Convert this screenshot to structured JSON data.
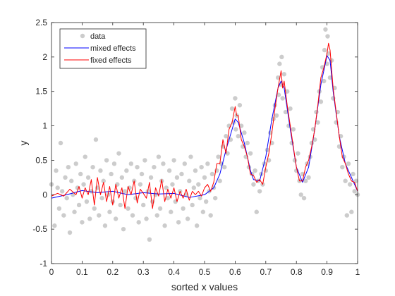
{
  "chart_data": {
    "type": "scatter",
    "title": "",
    "xlabel": "sorted x values",
    "ylabel": "y",
    "xlim": [
      0,
      1
    ],
    "ylim": [
      -1,
      2.5
    ],
    "xticks": [
      0,
      0.1,
      0.2,
      0.3,
      0.4,
      0.5,
      0.6,
      0.7,
      0.8,
      0.9,
      1
    ],
    "xtick_labels": [
      "0",
      "0.1",
      "0.2",
      "0.3",
      "0.4",
      "0.5",
      "0.6",
      "0.7",
      "0.8",
      "0.9",
      "1"
    ],
    "yticks": [
      -1,
      -0.5,
      0,
      0.5,
      1,
      1.5,
      2,
      2.5
    ],
    "ytick_labels": [
      "-1",
      "-0.5",
      "0",
      "0.5",
      "1",
      "1.5",
      "2",
      "2.5"
    ],
    "grid": false,
    "legend_position": "top-left",
    "series": [
      {
        "name": "data",
        "kind": "scatter",
        "color": "#cccccc",
        "points": [
          [
            0.0,
            0.15
          ],
          [
            0.01,
            -0.45
          ],
          [
            0.015,
            0.35
          ],
          [
            0.02,
            0.1
          ],
          [
            0.025,
            -0.2
          ],
          [
            0.03,
            0.75
          ],
          [
            0.035,
            0.05
          ],
          [
            0.04,
            -0.3
          ],
          [
            0.045,
            0.25
          ],
          [
            0.05,
            -0.05
          ],
          [
            0.055,
            0.4
          ],
          [
            0.06,
            -0.55
          ],
          [
            0.065,
            0.2
          ],
          [
            0.07,
            0.0
          ],
          [
            0.075,
            -0.25
          ],
          [
            0.08,
            0.45
          ],
          [
            0.085,
            0.1
          ],
          [
            0.09,
            -0.15
          ],
          [
            0.095,
            0.3
          ],
          [
            0.1,
            -0.4
          ],
          [
            0.105,
            0.15
          ],
          [
            0.11,
            0.55
          ],
          [
            0.115,
            -0.1
          ],
          [
            0.12,
            0.25
          ],
          [
            0.125,
            -0.35
          ],
          [
            0.13,
            0.05
          ],
          [
            0.135,
            0.4
          ],
          [
            0.14,
            -0.2
          ],
          [
            0.145,
            0.8
          ],
          [
            0.15,
            0.1
          ],
          [
            0.155,
            -0.3
          ],
          [
            0.16,
            0.35
          ],
          [
            0.165,
            -0.05
          ],
          [
            0.17,
            0.2
          ],
          [
            0.175,
            -0.45
          ],
          [
            0.18,
            0.5
          ],
          [
            0.185,
            0.0
          ],
          [
            0.19,
            -0.25
          ],
          [
            0.195,
            0.3
          ],
          [
            0.2,
            -0.1
          ],
          [
            0.205,
            0.45
          ],
          [
            0.21,
            -0.35
          ],
          [
            0.215,
            0.15
          ],
          [
            0.22,
            0.6
          ],
          [
            0.225,
            -0.15
          ],
          [
            0.23,
            0.25
          ],
          [
            0.235,
            -0.5
          ],
          [
            0.24,
            0.05
          ],
          [
            0.245,
            0.35
          ],
          [
            0.25,
            -0.2
          ],
          [
            0.255,
            0.1
          ],
          [
            0.26,
            0.45
          ],
          [
            0.265,
            -0.3
          ],
          [
            0.27,
            0.2
          ],
          [
            0.275,
            -0.05
          ],
          [
            0.28,
            0.4
          ],
          [
            0.285,
            -0.4
          ],
          [
            0.29,
            0.15
          ],
          [
            0.295,
            0.3
          ],
          [
            0.3,
            -0.15
          ],
          [
            0.305,
            0.5
          ],
          [
            0.31,
            -0.35
          ],
          [
            0.315,
            0.05
          ],
          [
            0.32,
            -0.65
          ],
          [
            0.325,
            0.25
          ],
          [
            0.33,
            -0.1
          ],
          [
            0.335,
            0.4
          ],
          [
            0.34,
            0.0
          ],
          [
            0.345,
            -0.3
          ],
          [
            0.35,
            0.55
          ],
          [
            0.355,
            -0.2
          ],
          [
            0.36,
            0.2
          ],
          [
            0.365,
            0.45
          ],
          [
            0.37,
            -0.45
          ],
          [
            0.375,
            0.1
          ],
          [
            0.38,
            -0.05
          ],
          [
            0.385,
            0.35
          ],
          [
            0.39,
            -0.25
          ],
          [
            0.395,
            0.15
          ],
          [
            0.4,
            0.5
          ],
          [
            0.405,
            -0.1
          ],
          [
            0.41,
            0.25
          ],
          [
            0.415,
            -0.4
          ],
          [
            0.42,
            0.05
          ],
          [
            0.425,
            0.3
          ],
          [
            0.43,
            -0.2
          ],
          [
            0.435,
            0.45
          ],
          [
            0.44,
            0.0
          ],
          [
            0.445,
            -0.35
          ],
          [
            0.45,
            0.2
          ],
          [
            0.455,
            0.55
          ],
          [
            0.46,
            -0.15
          ],
          [
            0.465,
            0.1
          ],
          [
            0.47,
            0.35
          ],
          [
            0.475,
            -0.45
          ],
          [
            0.48,
            0.15
          ],
          [
            0.485,
            -0.05
          ],
          [
            0.49,
            0.4
          ],
          [
            0.495,
            -0.25
          ],
          [
            0.5,
            0.25
          ],
          [
            0.505,
            -0.1
          ],
          [
            0.51,
            0.45
          ],
          [
            0.515,
            0.05
          ],
          [
            0.52,
            -0.3
          ],
          [
            0.525,
            0.3
          ],
          [
            0.53,
            0.1
          ],
          [
            0.535,
            -0.05
          ],
          [
            0.54,
            0.35
          ],
          [
            0.545,
            0.55
          ],
          [
            0.55,
            0.2
          ],
          [
            0.555,
            0.45
          ],
          [
            0.56,
            0.7
          ],
          [
            0.565,
            0.4
          ],
          [
            0.57,
            0.85
          ],
          [
            0.575,
            0.6
          ],
          [
            0.58,
            1.0
          ],
          [
            0.585,
            0.8
          ],
          [
            0.59,
            1.25
          ],
          [
            0.595,
            1.05
          ],
          [
            0.6,
            1.4
          ],
          [
            0.602,
            0.95
          ],
          [
            0.605,
            1.15
          ],
          [
            0.61,
            0.85
          ],
          [
            0.615,
            1.3
          ],
          [
            0.62,
            1.0
          ],
          [
            0.625,
            0.7
          ],
          [
            0.63,
            0.9
          ],
          [
            0.635,
            0.55
          ],
          [
            0.64,
            0.75
          ],
          [
            0.645,
            0.4
          ],
          [
            0.65,
            0.6
          ],
          [
            0.655,
            0.3
          ],
          [
            0.66,
            0.15
          ],
          [
            0.665,
            0.35
          ],
          [
            0.67,
            -0.25
          ],
          [
            0.675,
            0.2
          ],
          [
            0.68,
            0.05
          ],
          [
            0.685,
            0.3
          ],
          [
            0.69,
            0.15
          ],
          [
            0.695,
            0.45
          ],
          [
            0.7,
            0.35
          ],
          [
            0.705,
            0.65
          ],
          [
            0.71,
            0.5
          ],
          [
            0.715,
            0.9
          ],
          [
            0.72,
            0.75
          ],
          [
            0.725,
            1.1
          ],
          [
            0.73,
            1.3
          ],
          [
            0.735,
            1.15
          ],
          [
            0.74,
            1.7
          ],
          [
            0.742,
            1.45
          ],
          [
            0.745,
            1.9
          ],
          [
            0.75,
            1.6
          ],
          [
            0.752,
            2.0
          ],
          [
            0.755,
            1.4
          ],
          [
            0.76,
            1.75
          ],
          [
            0.765,
            1.2
          ],
          [
            0.77,
            1.5
          ],
          [
            0.775,
            1.0
          ],
          [
            0.78,
            1.25
          ],
          [
            0.785,
            0.75
          ],
          [
            0.79,
            0.95
          ],
          [
            0.795,
            0.5
          ],
          [
            0.8,
            0.35
          ],
          [
            0.805,
            0.6
          ],
          [
            0.81,
            0.2
          ],
          [
            0.815,
            0.0
          ],
          [
            0.82,
            0.3
          ],
          [
            0.825,
            -0.05
          ],
          [
            0.83,
            0.2
          ],
          [
            0.835,
            0.45
          ],
          [
            0.84,
            0.25
          ],
          [
            0.845,
            0.55
          ],
          [
            0.85,
            0.75
          ],
          [
            0.855,
            0.95
          ],
          [
            0.86,
            0.8
          ],
          [
            0.865,
            1.2
          ],
          [
            0.87,
            1.05
          ],
          [
            0.875,
            1.5
          ],
          [
            0.88,
            1.35
          ],
          [
            0.885,
            1.85
          ],
          [
            0.89,
            1.65
          ],
          [
            0.892,
            2.1
          ],
          [
            0.895,
            2.4
          ],
          [
            0.9,
            1.9
          ],
          [
            0.902,
            2.3
          ],
          [
            0.905,
            2.05
          ],
          [
            0.91,
            1.7
          ],
          [
            0.915,
            1.95
          ],
          [
            0.92,
            1.4
          ],
          [
            0.925,
            1.55
          ],
          [
            0.93,
            1.05
          ],
          [
            0.935,
            1.2
          ],
          [
            0.94,
            0.7
          ],
          [
            0.945,
            0.85
          ],
          [
            0.95,
            0.4
          ],
          [
            0.955,
            0.55
          ],
          [
            0.96,
            0.2
          ],
          [
            0.965,
            -0.3
          ],
          [
            0.97,
            0.45
          ],
          [
            0.975,
            0.15
          ],
          [
            0.98,
            -0.25
          ],
          [
            0.985,
            0.3
          ],
          [
            0.99,
            0.05
          ],
          [
            0.995,
            0.2
          ],
          [
            1.0,
            0.0
          ]
        ]
      },
      {
        "name": "mixed effects",
        "kind": "line",
        "color": "#0000ff",
        "x": [
          0.0,
          0.05,
          0.1,
          0.15,
          0.2,
          0.25,
          0.3,
          0.35,
          0.4,
          0.45,
          0.5,
          0.53,
          0.55,
          0.57,
          0.59,
          0.6,
          0.61,
          0.63,
          0.65,
          0.66,
          0.68,
          0.7,
          0.72,
          0.74,
          0.75,
          0.76,
          0.78,
          0.8,
          0.82,
          0.84,
          0.86,
          0.88,
          0.9,
          0.91,
          0.92,
          0.94,
          0.96,
          0.98,
          1.0
        ],
        "y": [
          -0.05,
          0.0,
          0.06,
          0.03,
          0.05,
          0.0,
          0.03,
          0.01,
          0.02,
          -0.04,
          0.0,
          0.1,
          0.3,
          0.65,
          0.95,
          1.1,
          1.05,
          0.75,
          0.35,
          0.22,
          0.2,
          0.55,
          1.1,
          1.55,
          1.65,
          1.55,
          0.95,
          0.4,
          0.18,
          0.4,
          0.95,
          1.6,
          2.02,
          1.95,
          1.5,
          0.85,
          0.45,
          0.25,
          0.05
        ]
      },
      {
        "name": "fixed effects",
        "kind": "line",
        "color": "#ff0000",
        "x": [
          0.0,
          0.02,
          0.04,
          0.06,
          0.08,
          0.09,
          0.1,
          0.11,
          0.12,
          0.13,
          0.14,
          0.15,
          0.16,
          0.17,
          0.18,
          0.19,
          0.2,
          0.21,
          0.22,
          0.23,
          0.24,
          0.25,
          0.26,
          0.27,
          0.28,
          0.29,
          0.3,
          0.31,
          0.32,
          0.33,
          0.34,
          0.35,
          0.36,
          0.37,
          0.38,
          0.39,
          0.4,
          0.41,
          0.42,
          0.43,
          0.44,
          0.45,
          0.46,
          0.47,
          0.48,
          0.49,
          0.5,
          0.51,
          0.52,
          0.53,
          0.54,
          0.55,
          0.56,
          0.57,
          0.58,
          0.59,
          0.6,
          0.605,
          0.61,
          0.62,
          0.63,
          0.64,
          0.65,
          0.66,
          0.67,
          0.68,
          0.69,
          0.7,
          0.71,
          0.72,
          0.73,
          0.74,
          0.75,
          0.755,
          0.76,
          0.77,
          0.78,
          0.79,
          0.8,
          0.81,
          0.82,
          0.83,
          0.84,
          0.85,
          0.86,
          0.87,
          0.88,
          0.89,
          0.9,
          0.905,
          0.91,
          0.92,
          0.93,
          0.94,
          0.95,
          0.96,
          0.97,
          0.98,
          0.99,
          1.0
        ],
        "y": [
          -0.02,
          0.02,
          -0.02,
          0.08,
          0.0,
          0.12,
          -0.05,
          0.1,
          0.0,
          0.22,
          -0.15,
          0.25,
          0.0,
          0.18,
          -0.1,
          0.12,
          -0.15,
          0.15,
          -0.05,
          0.1,
          -0.2,
          0.12,
          0.0,
          0.2,
          -0.12,
          0.08,
          0.02,
          -0.05,
          0.18,
          -0.2,
          0.1,
          -0.02,
          0.22,
          -0.1,
          0.08,
          -0.05,
          0.1,
          -0.1,
          0.05,
          -0.05,
          0.08,
          -0.08,
          0.05,
          0.0,
          0.05,
          -0.02,
          0.1,
          0.15,
          0.05,
          0.18,
          0.45,
          0.45,
          0.8,
          0.6,
          0.95,
          1.05,
          1.28,
          1.15,
          1.15,
          0.8,
          0.7,
          0.55,
          0.3,
          0.28,
          0.18,
          0.22,
          0.15,
          0.4,
          0.6,
          0.9,
          1.25,
          1.55,
          1.8,
          1.55,
          1.65,
          1.3,
          1.0,
          0.7,
          0.4,
          0.2,
          0.2,
          0.4,
          0.5,
          0.7,
          0.95,
          1.3,
          1.7,
          1.85,
          2.05,
          2.2,
          2.1,
          1.55,
          1.2,
          0.85,
          0.55,
          0.45,
          0.3,
          0.2,
          0.18,
          0.05
        ]
      }
    ]
  }
}
